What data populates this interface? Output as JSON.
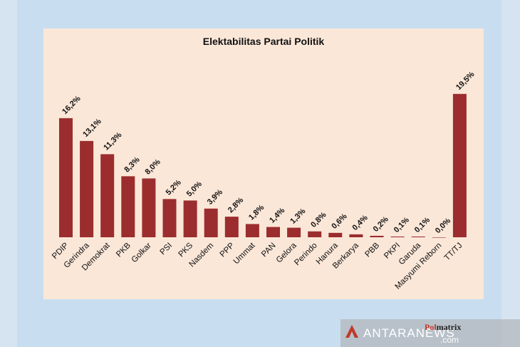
{
  "chart_data": {
    "type": "bar",
    "title": "Elektabilitas Partai Politik",
    "xlabel": "",
    "ylabel": "",
    "ylim": [
      0,
      22
    ],
    "grid": false,
    "bar_color": "#9b2d2e",
    "categories": [
      "PDIP",
      "Gerindra",
      "Demokrat",
      "PKB",
      "Golkar",
      "PSI",
      "PKS",
      "Nasdem",
      "PPP",
      "Ummat",
      "PAN",
      "Gelora",
      "Perindo",
      "Hanura",
      "Berkarya",
      "PBB",
      "PKPI",
      "Garuda",
      "Masyumi Reborn",
      "TT/TJ"
    ],
    "values": [
      16.2,
      13.1,
      11.3,
      8.3,
      8.0,
      5.2,
      5.0,
      3.9,
      2.8,
      1.8,
      1.4,
      1.3,
      0.8,
      0.6,
      0.4,
      0.2,
      0.1,
      0.1,
      0.0,
      19.5
    ],
    "data_labels": [
      "16,2%",
      "13,1%",
      "11,3%",
      "8,3%",
      "8,0%",
      "5,2%",
      "5,0%",
      "3,9%",
      "2,8%",
      "1,8%",
      "1,4%",
      "1,3%",
      "0,8%",
      "0,6%",
      "0,4%",
      "0,2%",
      "0,1%",
      "0,1%",
      "0,0%",
      "19,5%"
    ]
  },
  "watermark": {
    "antara": "ANTARANEWS",
    "com": ".com",
    "polmatrix_a": "Pol",
    "polmatrix_b": "matrix"
  }
}
